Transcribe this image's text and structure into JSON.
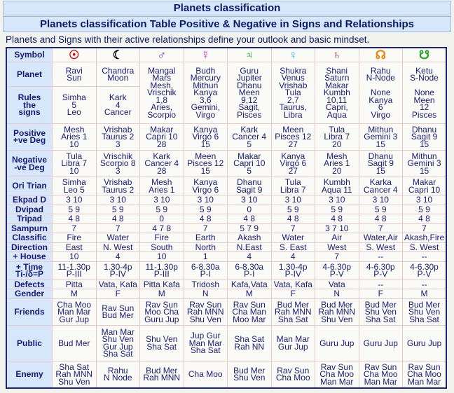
{
  "header": {
    "title": "Planets classification",
    "subtitle": "Planets classification Table Positive & Negative in Signs and Relationships",
    "intro": "Planets and Signs with their active relationships define your outlook and basic mindset."
  },
  "table": {
    "symbol_label": "Symbol",
    "symbols": [
      "☉",
      "☾",
      "♂",
      "☿",
      "♃",
      "♀",
      "♄",
      "☊",
      "☋"
    ],
    "symbol_colors": [
      "#e00000",
      "#000000",
      "#7030c0",
      "#e020c0",
      "#20a020",
      "#20c0e0",
      "#a02020",
      "#f08000",
      "#20a020"
    ],
    "rows": [
      {
        "label": "Planet",
        "cells": [
          "Ravi\nSun",
          "Chandra\nMoon",
          "Mangal\nMars\nMesh,\nVrischik\n1,8\nAries,\nScorpio",
          "Budh\nMercury\nMithun\nKanya\n3,6\nGemini,\nVirgo",
          "Guru\nJupiter\nDhanu\nMeen\n9,12\nSagit,\nPisces",
          "Shukra\nVenus\nVrishab\nTula\n2,7\nTaurus,\nLibra",
          "Shani\nSaturn\nMakar\nKumbh\n10,11\nCapri,\nAqua",
          "Rahu\nN-Node\n\nNone\nKanya\n6\nVirgo",
          "Ketu\nS-Node\n\nNone\nMeen\n12\nPisces"
        ]
      },
      {
        "label": "Rules\nthe\nsigns",
        "cells": [
          "Simha\n5\nLeo",
          "Kark\n4\nCancer",
          null,
          null,
          null,
          null,
          null,
          null,
          null
        ]
      },
      {
        "label": "Positive\n+ve Deg",
        "cells": [
          "Mesh\nAries 1\n10",
          "Vrishab\nTaurus 2\n3",
          "Makar\nCapri 10\n28",
          "Kanya\nVirgo 6\n15",
          "Kark\nCancer 4\n5",
          "Meen\nPisces 12\n27",
          "Tula\nLibra 7\n20",
          "Mithun\nGemini 3\n15",
          "Dhanu\nSagit 9\n15"
        ]
      },
      {
        "label": "Negative\n-ve Deg",
        "cells": [
          "Tula\nLibra 7\n10",
          "Vrischik\nScorpio 8\n3",
          "Kark\nCancer 4\n28",
          "Meen\nPisces 12\n15",
          "Makar\nCapri 10\n5",
          "Kanya\nVirgo 6\n27",
          "Mesh\nAries 1\n20",
          "Dhanu\nSagit 9\n15",
          "Mithun\nGemini 3\n15"
        ]
      },
      {
        "label": "Ori Trian",
        "cells": [
          "Simha\nLeo 5",
          "Vrishab\nTaurus 2",
          "Mesh\nAries 1",
          "Kanya\nVirgo 6",
          "Dhanu\nSagit 9",
          "Tula\nLibra 7",
          "Kumbh\nAqua 11",
          "Karka\nCancer 4",
          "Makar\nCapri 10"
        ]
      },
      {
        "label": "Ekpad D",
        "cells": [
          "3 10",
          "3 10",
          "3 10",
          "3 10",
          "3 10",
          "3 10",
          "3 10",
          "3 10",
          "3 10"
        ]
      },
      {
        "label": "Dvipad",
        "cells": [
          "5 9",
          "5 9",
          "5 9",
          "5 9",
          "0",
          "5 9",
          "5 9",
          "5 9",
          "5 9"
        ]
      },
      {
        "label": "Tripad",
        "cells": [
          "4 8",
          "4 8",
          "0",
          "4 8",
          "4 8",
          "4 8",
          "4 8",
          "4 8",
          "4 8"
        ]
      },
      {
        "label": "Sampurn",
        "cells": [
          "7",
          "7",
          "4 7 8",
          "7",
          "5 7 9",
          "7",
          "3 7 10",
          "7",
          "7"
        ]
      },
      {
        "label": "Classific",
        "cells": [
          "Fire",
          "Water",
          "Fire",
          "Earth",
          "Akash",
          "Water",
          "Air",
          "Water,Air",
          "Akash,Fire"
        ]
      },
      {
        "label": "Direction",
        "cells": [
          "East",
          "N. West",
          "South",
          "North",
          "N.East",
          "S. East",
          "West",
          "S. West",
          "S. West"
        ]
      },
      {
        "label": "+ House",
        "cells": [
          "10",
          "4",
          "10",
          "1",
          "4",
          "4",
          "7",
          "--",
          "--"
        ]
      },
      {
        "label": "+ Time\nTi-/δ=P",
        "cells": [
          "11-1.30p\nP-III",
          "1.30-4p\nP-IV",
          "11-1.30p\nP-III",
          "6-8.30a\nP-I",
          "6-8.30a\nP-I",
          "1.30-4p\nP-IV",
          "4-6.30p\nP-V",
          "4-6.30p\nP-V",
          "4-6.30p\nP-V"
        ]
      },
      {
        "label": "Defects",
        "cells": [
          "Pitta",
          "Vata, Kafa",
          "Pitta Kafa",
          "Tridosh",
          "Kafa,Vata",
          "Vata, Kafa",
          "Vata",
          "--",
          "--"
        ]
      },
      {
        "label": "Gender",
        "cells": [
          "M",
          "F",
          "M",
          "N",
          "M",
          "F",
          "N",
          "F",
          "M"
        ]
      },
      {
        "label": "Friends",
        "cells": [
          "Cha Moo\nMan Mar\nGur Jup",
          "Rav Sun\nBud Mer",
          "Rav Sun\nMoo Cha\nGuru Jup",
          "Rav Sun\nRah MNN\nShu Ven",
          "Rav Sun\nCha Man\nMoo Mar",
          "Bud Mer\nRah MNN\nSha Sat",
          "Bud Mer\nRah MNN\nShu Ven",
          "Bud Mer\nShu Ven\nSha Sat",
          "Bud Mer\nShu Ven\nSha Sat"
        ]
      },
      {
        "label": "Public",
        "cells": [
          "Bud Mer",
          "Man Mar\nShu Ven\nGur Jup\nSha Sat",
          "Shu Ven\nSha Sat",
          "Jup Gur\nMan Mar\nSha Sat",
          "Sha Sat\nRah NN",
          "Man Mar\nGur Jup",
          "Guru Jup",
          "Guru Jup",
          "Guru Jup"
        ]
      },
      {
        "label": "Enemy",
        "cells": [
          "Sha Sat\nRah MNN\nShu Ven",
          "Rahu\nN Node",
          "Bud Mer\nRah MNN",
          "Cha Moo",
          "Bud Mer\nShu Ven",
          "Rav Sun\nCha Moo",
          "Rav Sun\nCha Moo\nMan Mar",
          "Rav Sun\nCha Moo\nMan Mar",
          "Rav Sun\nCha Moo\nMan Mar"
        ]
      }
    ]
  }
}
